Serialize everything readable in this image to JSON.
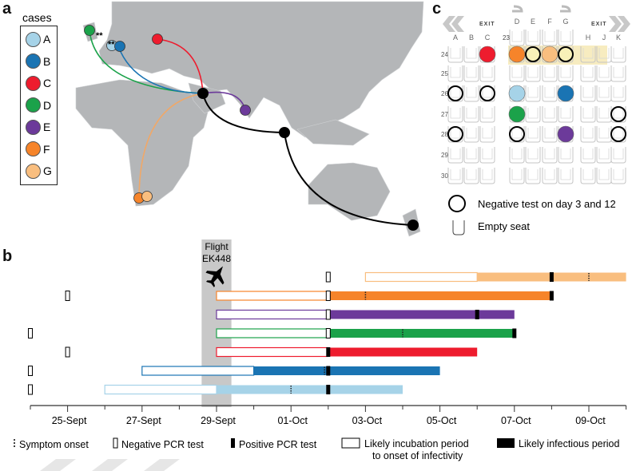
{
  "panels": {
    "a": "a",
    "b": "b",
    "c": "c"
  },
  "map": {
    "legend_title": "cases",
    "cases": [
      {
        "id": "A",
        "color": "#a6d3e8"
      },
      {
        "id": "B",
        "color": "#1a74b3"
      },
      {
        "id": "C",
        "color": "#ee1c2e"
      },
      {
        "id": "D",
        "color": "#1ba24a"
      },
      {
        "id": "E",
        "color": "#6c3a9a"
      },
      {
        "id": "F",
        "color": "#f6842a"
      },
      {
        "id": "G",
        "color": "#f9be7f"
      }
    ],
    "stars": "**"
  },
  "seatmap": {
    "exit_label": "EXIT",
    "left_cols": [
      "A",
      "B",
      "C"
    ],
    "mid_cols": [
      "D",
      "E",
      "F",
      "G"
    ],
    "right_cols": [
      "H",
      "J",
      "K"
    ],
    "rows": [
      "24",
      "25",
      "26",
      "27",
      "28",
      "29",
      "30"
    ],
    "front_row": "23",
    "occupied": [
      {
        "seat": "24C",
        "case": "C"
      },
      {
        "seat": "24D",
        "case": "F"
      },
      {
        "seat": "24E",
        "case": "neg"
      },
      {
        "seat": "24F",
        "case": "G"
      },
      {
        "seat": "24G",
        "case": "neg"
      },
      {
        "seat": "26A",
        "case": "neg"
      },
      {
        "seat": "26C",
        "case": "neg"
      },
      {
        "seat": "26D",
        "case": "A"
      },
      {
        "seat": "26G",
        "case": "B"
      },
      {
        "seat": "27D",
        "case": "D"
      },
      {
        "seat": "27K",
        "case": "neg"
      },
      {
        "seat": "28A",
        "case": "neg"
      },
      {
        "seat": "28D",
        "case": "neg"
      },
      {
        "seat": "28G",
        "case": "E"
      },
      {
        "seat": "28K",
        "case": "neg"
      }
    ],
    "legend_negative": "Negative test on day 3 and 12",
    "legend_empty": "Empty seat"
  },
  "chart_data": {
    "type": "timeline",
    "x_unit": "day (24 = 24-Sept, 31 = 01-Oct)",
    "xlim": [
      24,
      40
    ],
    "ticks": [
      {
        "day": 25,
        "label": "25-Sept"
      },
      {
        "day": 27,
        "label": "27-Sept"
      },
      {
        "day": 29,
        "label": "29-Sept"
      },
      {
        "day": 31,
        "label": "01-Oct"
      },
      {
        "day": 33,
        "label": "03-Oct"
      },
      {
        "day": 35,
        "label": "05-Oct"
      },
      {
        "day": 37,
        "label": "07-Oct"
      },
      {
        "day": 39,
        "label": "09-Oct"
      }
    ],
    "flight": {
      "label1": "Flight",
      "label2": "EK448",
      "start": 28.6,
      "end": 29.4
    },
    "series": [
      {
        "name": "G",
        "color": "#f9be7f",
        "incubation": [
          33,
          36
        ],
        "infectious": [
          36,
          40
        ],
        "negative": [
          32
        ],
        "positive": [
          38
        ],
        "symptom": [
          39
        ]
      },
      {
        "name": "F",
        "color": "#f6842a",
        "incubation": [
          29,
          32
        ],
        "infectious": [
          32,
          38
        ],
        "negative": [
          25,
          32
        ],
        "positive": [
          38
        ],
        "symptom": [
          33
        ]
      },
      {
        "name": "E",
        "color": "#6c3a9a",
        "incubation": [
          29,
          32
        ],
        "infectious": [
          32,
          37
        ],
        "negative": [
          32
        ],
        "positive": [
          36
        ],
        "symptom": []
      },
      {
        "name": "D",
        "color": "#1ba24a",
        "incubation": [
          29,
          32
        ],
        "infectious": [
          32,
          37
        ],
        "negative": [
          24,
          32
        ],
        "positive": [
          37
        ],
        "symptom": [
          34
        ]
      },
      {
        "name": "C",
        "color": "#ee1c2e",
        "incubation": [
          29,
          32
        ],
        "infectious": [
          32,
          36
        ],
        "negative": [
          25
        ],
        "positive": [
          32
        ],
        "symptom": []
      },
      {
        "name": "B",
        "color": "#1a74b3",
        "incubation": [
          27,
          30
        ],
        "infectious": [
          30,
          35
        ],
        "negative": [
          24
        ],
        "positive": [
          32
        ],
        "symptom": [
          31.9
        ]
      },
      {
        "name": "A",
        "color": "#a6d3e8",
        "incubation": [
          26,
          29
        ],
        "infectious": [
          29,
          34
        ],
        "negative": [
          24
        ],
        "positive": [
          32
        ],
        "symptom": [
          31
        ]
      }
    ],
    "legend": {
      "symptom": "Symptom onset",
      "negative": "Negative PCR test",
      "positive": "Positive PCR test",
      "incubation1": "Likely incubation period",
      "incubation2": "to onset of infectivity",
      "infectious": "Likely infectious period"
    }
  }
}
